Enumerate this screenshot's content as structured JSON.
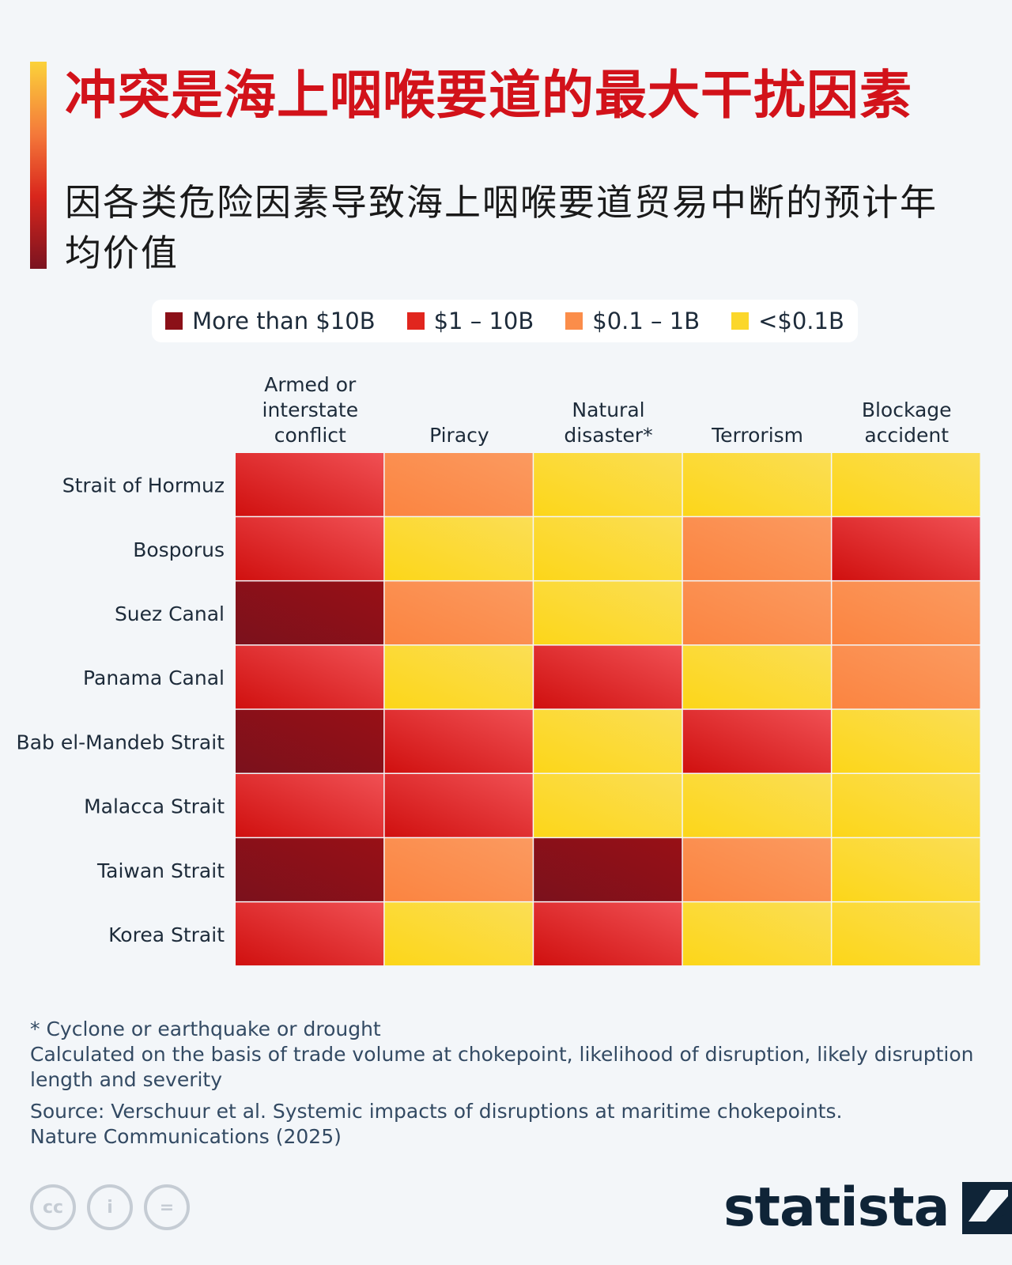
{
  "title": "冲突是海上咽喉要道的最大干扰因素",
  "subtitle": "因各类危险因素导致海上咽喉要道贸易中断的预计年均价值",
  "legend": [
    {
      "label": "More than $10B",
      "color": "#8b1018"
    },
    {
      "label": "$1 – 10B",
      "color": "#e1261e"
    },
    {
      "label": "$0.1 – 1B",
      "color": "#fb8d4a"
    },
    {
      "label": "<$0.1B",
      "color": "#fbd72b"
    }
  ],
  "chart_data": {
    "type": "heatmap",
    "columns": [
      {
        "lines": [
          "Armed or",
          "interstate",
          "conflict"
        ]
      },
      {
        "lines": [
          "Piracy"
        ]
      },
      {
        "lines": [
          "Natural",
          "disaster*"
        ]
      },
      {
        "lines": [
          "Terrorism"
        ]
      },
      {
        "lines": [
          "Blockage",
          "accident"
        ]
      }
    ],
    "rows": [
      "Strait of Hormuz",
      "Bosporus",
      "Suez Canal",
      "Panama Canal",
      "Bab el-Mandeb Strait",
      "Malacca Strait",
      "Taiwan Strait",
      "Korea Strait"
    ],
    "categories": [
      "More than $10B",
      "$1 – 10B",
      "$0.1 – 1B",
      "<$0.1B"
    ],
    "values": [
      [
        "$1 – 10B",
        "$0.1 – 1B",
        "<$0.1B",
        "<$0.1B",
        "<$0.1B"
      ],
      [
        "$1 – 10B",
        "<$0.1B",
        "<$0.1B",
        "$0.1 – 1B",
        "$1 – 10B"
      ],
      [
        "More than $10B",
        "$0.1 – 1B",
        "<$0.1B",
        "$0.1 – 1B",
        "$0.1 – 1B"
      ],
      [
        "$1 – 10B",
        "<$0.1B",
        "$1 – 10B",
        "<$0.1B",
        "$0.1 – 1B"
      ],
      [
        "More than $10B",
        "$1 – 10B",
        "<$0.1B",
        "$1 – 10B",
        "<$0.1B"
      ],
      [
        "$1 – 10B",
        "$1 – 10B",
        "<$0.1B",
        "<$0.1B",
        "<$0.1B"
      ],
      [
        "More than $10B",
        "$0.1 – 1B",
        "More than $10B",
        "$0.1 – 1B",
        "<$0.1B"
      ],
      [
        "$1 – 10B",
        "<$0.1B",
        "$1 – 10B",
        "<$0.1B",
        "<$0.1B"
      ]
    ],
    "category_colors": {
      "More than $10B": [
        "#7b111c",
        "#981016"
      ],
      "$1 – 10B": [
        "#d0100f",
        "#f05054"
      ],
      "$0.1 – 1B": [
        "#fb8440",
        "#fb9a60"
      ],
      "<$0.1B": [
        "#fcd619",
        "#fbde55"
      ]
    }
  },
  "notes": {
    "footnote": "* Cyclone or earthquake or drought",
    "method": "Calculated on the basis of trade volume at chokepoint, likelihood of disruption, likely disruption length and severity",
    "source": "Source: Verschuur et al. Systemic impacts of disruptions at maritime chokepoints.",
    "journal": "Nature Communications (2025)"
  },
  "license_icons": [
    {
      "symbol": "cc",
      "name": "creative-commons-icon"
    },
    {
      "symbol": "i",
      "name": "attribution-icon"
    },
    {
      "symbol": "=",
      "name": "no-derivatives-icon"
    }
  ],
  "brand": {
    "name": "statista"
  }
}
